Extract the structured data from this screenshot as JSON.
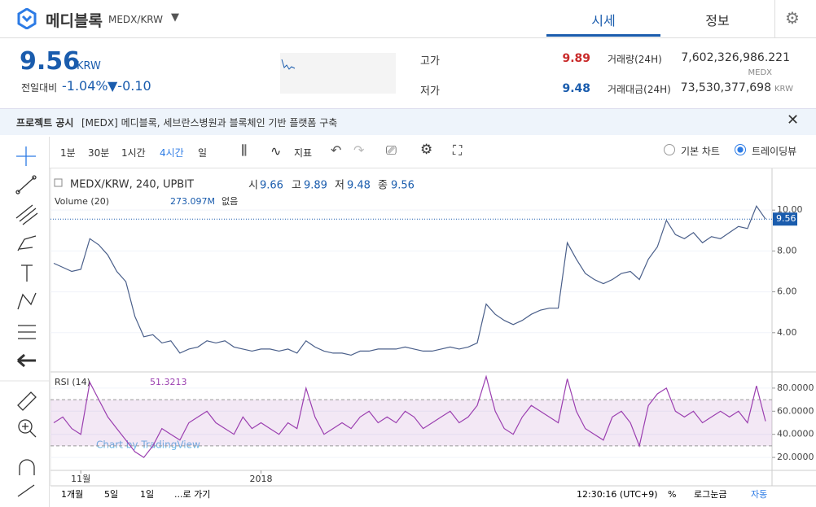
{
  "header": {
    "title": "메디블록",
    "pair": "MEDX/KRW",
    "tabs": [
      "시세",
      "정보"
    ]
  },
  "ticker": {
    "price": "9.56",
    "currency": "KRW",
    "change_label": "전일대비",
    "change_pct": "-1.04%",
    "change_abs": "▼-0.10",
    "high_label": "고가",
    "high": "9.89",
    "low_label": "저가",
    "low": "9.48",
    "volume_label": "거래량(24H)",
    "volume": "7,602,326,986.221",
    "volume_unit": "MEDX",
    "amount_label": "거래대금(24H)",
    "amount": "73,530,377,698",
    "amount_unit": "KRW"
  },
  "notice": {
    "tag": "프로젝트 공시",
    "text": "[MEDX] 메디블록, 세브란스병원과 블록체인 기반 플랫폼 구축"
  },
  "toolbar": {
    "intervals": [
      "1분",
      "30분",
      "1시간",
      "4시간",
      "일"
    ],
    "indicator": "지표",
    "chart_modes": [
      "기본 차트",
      "트레이딩뷰"
    ]
  },
  "legend": {
    "symbol": "MEDX/KRW, 240, UPBIT",
    "open_label": "시",
    "open": "9.66",
    "high_label": "고",
    "high": "9.89",
    "low_label": "저",
    "low": "9.48",
    "close_label": "종",
    "close": "9.56",
    "volume_name": "Volume (20)",
    "volume_value": "273.097M",
    "volume_extra": "없음",
    "rsi_name": "RSI (14)",
    "rsi_value": "51.3213",
    "watermark": "Chart by TradingView"
  },
  "bottom_bar": {
    "ranges": [
      "1개월",
      "5일",
      "1일"
    ],
    "goto": "...로 가기",
    "time": "12:30:16 (UTC+9)",
    "percent": "%",
    "log": "로그눈금",
    "auto": "자동"
  },
  "chart_data": [
    {
      "type": "line",
      "grid": true,
      "color": "#4a5f8a",
      "categories": [
        null,
        null,
        null,
        "11월",
        null,
        null,
        null,
        null,
        null,
        null,
        null,
        null,
        null,
        null,
        null,
        null,
        null,
        null,
        null,
        null,
        null,
        null,
        null,
        "2018",
        null,
        null,
        null,
        null,
        null,
        null,
        null,
        null,
        null,
        null,
        null,
        null,
        null,
        null,
        null,
        null,
        null,
        null,
        null,
        null,
        null,
        null,
        null,
        null,
        null,
        null,
        null,
        null,
        null,
        null,
        null,
        null,
        null,
        null,
        null,
        null,
        null,
        null,
        null,
        null,
        null,
        null,
        null,
        null,
        null,
        null,
        null,
        null,
        null,
        null,
        null,
        null,
        null,
        null,
        null,
        null
      ],
      "values": [
        7.4,
        7.2,
        7.0,
        7.1,
        8.6,
        8.3,
        7.8,
        7.0,
        6.5,
        4.8,
        3.8,
        3.9,
        3.5,
        3.6,
        3.0,
        3.2,
        3.3,
        3.6,
        3.5,
        3.6,
        3.3,
        3.2,
        3.1,
        3.2,
        3.2,
        3.1,
        3.2,
        3.0,
        3.6,
        3.3,
        3.1,
        3.0,
        3.0,
        2.9,
        3.1,
        3.1,
        3.2,
        3.2,
        3.2,
        3.3,
        3.2,
        3.1,
        3.1,
        3.2,
        3.3,
        3.2,
        3.3,
        3.5,
        5.4,
        4.9,
        4.6,
        4.4,
        4.6,
        4.9,
        5.1,
        5.2,
        5.2,
        8.4,
        7.6,
        6.9,
        6.6,
        6.4,
        6.6,
        6.9,
        7.0,
        6.6,
        7.6,
        8.2,
        9.5,
        8.8,
        8.6,
        8.9,
        8.4,
        8.7,
        8.6,
        8.9,
        9.2,
        9.1,
        10.2,
        9.56
      ],
      "ylim": [
        2.16,
        11.72
      ],
      "yticks": [
        {
          "value": 4,
          "label": "4.00"
        },
        {
          "value": 6,
          "label": "6.00"
        },
        {
          "value": 8,
          "label": "8.00"
        },
        {
          "value": 10,
          "label": "10.00"
        }
      ],
      "current_label": "9.56"
    },
    {
      "type": "line",
      "grid": true,
      "color": "#9b3fb0",
      "values": [
        50,
        55,
        45,
        40,
        85,
        70,
        55,
        45,
        35,
        25,
        20,
        30,
        45,
        40,
        35,
        50,
        55,
        60,
        50,
        45,
        40,
        55,
        45,
        50,
        45,
        40,
        50,
        45,
        80,
        55,
        40,
        45,
        50,
        45,
        55,
        60,
        50,
        55,
        50,
        60,
        55,
        45,
        50,
        55,
        60,
        50,
        55,
        65,
        90,
        60,
        45,
        40,
        55,
        65,
        60,
        55,
        50,
        88,
        60,
        45,
        40,
        35,
        55,
        60,
        50,
        30,
        65,
        75,
        80,
        60,
        55,
        60,
        50,
        55,
        60,
        55,
        60,
        50,
        82,
        51.3213
      ],
      "ylim": [
        8.8,
        91.9
      ],
      "yticks": [
        {
          "value": 20,
          "label": "20.0000"
        },
        {
          "value": 40,
          "label": "40.0000"
        },
        {
          "value": 60,
          "label": "60.0000"
        },
        {
          "value": 80,
          "label": "80.0000"
        }
      ],
      "band": [
        30,
        70
      ]
    }
  ]
}
